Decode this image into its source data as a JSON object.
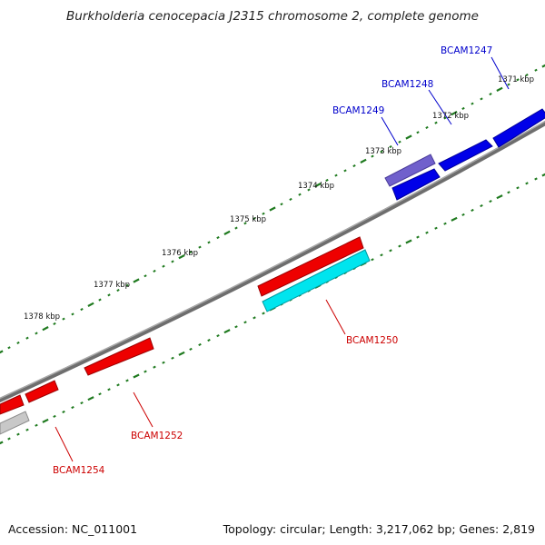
{
  "title": "Burkholderia cenocepacia J2315 chromosome 2, complete genome",
  "footer": {
    "accession": "Accession: NC_011001",
    "topology": "Topology: circular; Length: 3,217,062 bp; Genes: 2,819"
  },
  "colors": {
    "forward_gene": "#0000e8",
    "forward_gene_alt": "#6a5acd",
    "reverse_gene": "#ee0000",
    "reverse_gene_alt": "#00e5ee",
    "pseudo_gene": "#c8c8c8",
    "backbone": "#7a7a7a",
    "ticks": "#1f7a1f",
    "forward_label": "#0000cc",
    "reverse_label": "#cc0000"
  },
  "scale_labels": [
    "1371 kbp",
    "1372 kbp",
    "1373 kbp",
    "1374 kbp",
    "1375 kbp",
    "1376 kbp",
    "1377 kbp",
    "1378 kbp"
  ],
  "genes": [
    {
      "id": "BCAM1247",
      "strand": "forward"
    },
    {
      "id": "BCAM1248",
      "strand": "forward"
    },
    {
      "id": "BCAM1249",
      "strand": "forward"
    },
    {
      "id": "BCAM1250",
      "strand": "reverse"
    },
    {
      "id": "BCAM1252",
      "strand": "reverse"
    },
    {
      "id": "BCAM1254",
      "strand": "reverse"
    }
  ]
}
